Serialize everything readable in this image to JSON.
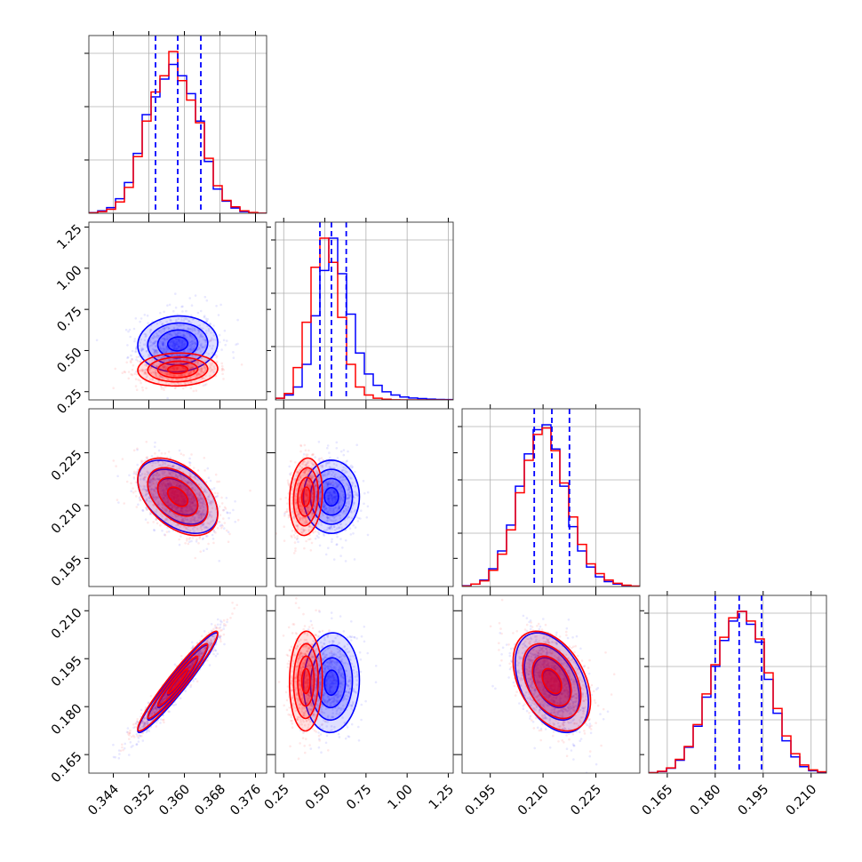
{
  "chart_data": {
    "type": "corner",
    "title": "",
    "parameters": [
      {
        "range": [
          0.3385,
          0.3785
        ],
        "ticks": [
          0.344,
          0.352,
          0.36,
          0.368,
          0.376
        ],
        "tick_labels": [
          "0.344",
          "0.352",
          "0.360",
          "0.368",
          "0.376"
        ]
      },
      {
        "range": [
          0.2,
          1.28
        ],
        "ticks": [
          0.25,
          0.5,
          0.75,
          1.0,
          1.25
        ],
        "tick_labels": [
          "0.25",
          "0.50",
          "0.75",
          "1.00",
          "1.25"
        ]
      },
      {
        "range": [
          0.187,
          0.2375
        ],
        "ticks": [
          0.195,
          0.21,
          0.225
        ],
        "tick_labels": [
          "0.195",
          "0.210",
          "0.225"
        ]
      },
      {
        "range": [
          0.1592,
          0.2148
        ],
        "ticks": [
          0.165,
          0.18,
          0.195,
          0.21
        ],
        "tick_labels": [
          "0.165",
          "0.180",
          "0.195",
          "0.210"
        ]
      }
    ],
    "series": [
      {
        "color": "#0000ff",
        "mean": [
          0.3585,
          0.54,
          0.2125,
          0.1875
        ],
        "std": [
          0.0045,
          0.085,
          0.0052,
          0.0078
        ],
        "quantiles": [
          [
            0.3535,
            0.3585,
            0.3637
          ],
          [
            0.47,
            0.54,
            0.63
          ],
          [
            0.2075,
            0.2125,
            0.2175
          ],
          [
            0.18,
            0.1875,
            0.1945
          ]
        ],
        "histograms": [
          [
            0.4,
            1.5,
            3.5,
            9.0,
            19.0,
            37.0,
            61.0,
            72.0,
            83.0,
            92.0,
            85.0,
            74.0,
            57.0,
            32.0,
            15.0,
            7.5,
            3.2,
            1.0,
            0.3,
            0.0
          ],
          [
            1.0,
            3.0,
            8.0,
            22.0,
            52.0,
            80.0,
            100.0,
            78.0,
            53.0,
            29.0,
            16.0,
            9.0,
            5.0,
            3.0,
            1.8,
            1.2,
            0.8,
            0.5,
            0.3,
            0.2
          ],
          [
            0.5,
            1.5,
            4.0,
            11.0,
            22.0,
            38.0,
            62.0,
            82.0,
            97.0,
            100.0,
            85.0,
            62.0,
            37.0,
            22.0,
            12.0,
            6.0,
            3.0,
            1.5,
            0.5,
            0.2
          ],
          [
            0.3,
            1.0,
            3.0,
            8.0,
            16.0,
            29.0,
            47.0,
            66.0,
            82.0,
            94.0,
            100.0,
            92.0,
            81.0,
            58.0,
            37.0,
            20.0,
            10.0,
            4.0,
            1.5,
            0.4
          ]
        ]
      },
      {
        "color": "#ff0000",
        "mean": [
          0.3585,
          0.385,
          0.2125,
          0.188
        ],
        "std": [
          0.0045,
          0.05,
          0.0055,
          0.0078
        ],
        "histograms": [
          [
            0.3,
            1.0,
            2.5,
            7.0,
            16.0,
            35.0,
            57.0,
            75.0,
            85.0,
            100.0,
            82.0,
            70.0,
            56.0,
            34.0,
            17.0,
            8.0,
            4.0,
            1.5,
            0.5,
            0.1
          ],
          [
            1.0,
            4.0,
            20.0,
            48.0,
            82.0,
            100.0,
            85.0,
            51.0,
            22.0,
            8.0,
            3.0,
            1.0,
            0.4,
            0.1,
            0.0,
            0.0,
            0.0,
            0.0,
            0.0,
            0.0
          ],
          [
            0.3,
            1.5,
            3.5,
            10.0,
            20.0,
            35.0,
            58.0,
            78.0,
            94.0,
            98.0,
            84.0,
            64.0,
            43.0,
            26.0,
            14.0,
            8.0,
            4.0,
            2.0,
            0.8,
            0.3
          ],
          [
            0.3,
            1.2,
            3.2,
            8.5,
            16.5,
            30.0,
            49.0,
            67.0,
            84.0,
            96.0,
            100.0,
            94.0,
            83.0,
            62.0,
            40.0,
            23.0,
            12.0,
            5.0,
            2.0,
            0.8
          ]
        ]
      }
    ],
    "correlations": {
      "blue": [
        [
          1,
          0.05,
          -0.45,
          0.96
        ],
        [
          0.05,
          1,
          0.0,
          0.05
        ],
        [
          -0.45,
          0.0,
          1,
          -0.4
        ],
        [
          0.96,
          0.05,
          -0.4,
          1
        ]
      ],
      "red": [
        [
          1,
          0.05,
          -0.45,
          0.96
        ],
        [
          0.05,
          1,
          0.12,
          0.03
        ],
        [
          -0.45,
          0.12,
          1,
          -0.4
        ],
        [
          0.96,
          0.03,
          -0.4,
          1
        ]
      ]
    },
    "contour_levels_sigma": [
      0.5,
      1.0,
      1.5,
      2.0
    ],
    "grid": true,
    "legend": "none"
  }
}
